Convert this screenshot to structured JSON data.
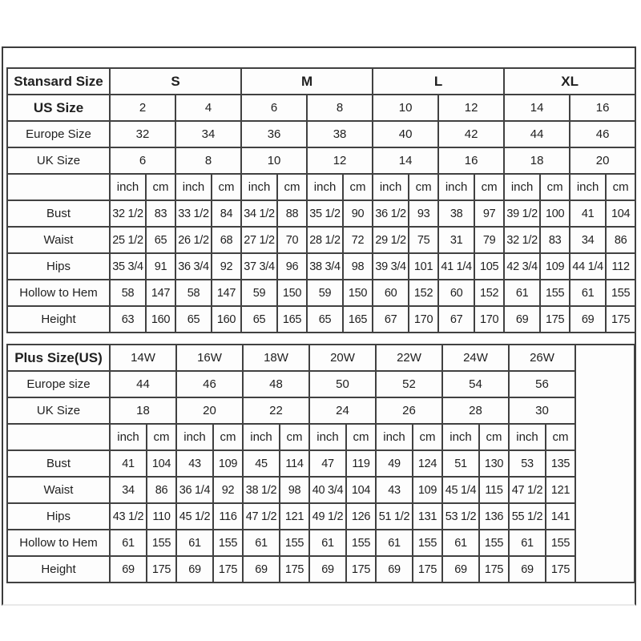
{
  "page": {
    "background": "#ffffff",
    "frame_border_color": "#3c3c3c",
    "grid_color": "#414141",
    "text_color": "#1f1f1f",
    "cell_background": "#fdfdfd"
  },
  "standard_table": {
    "header_label": "Stansard Size",
    "header_values_bold": true,
    "trailing_empty_column": false,
    "size_groups": [
      {
        "label": "S",
        "sizes": 2
      },
      {
        "label": "M",
        "sizes": 2
      },
      {
        "label": "L",
        "sizes": 2
      },
      {
        "label": "XL",
        "sizes": 2
      }
    ],
    "size_rows": [
      {
        "label": "US Size",
        "bold": true,
        "values": [
          "2",
          "4",
          "6",
          "8",
          "10",
          "12",
          "14",
          "16"
        ]
      },
      {
        "label": "Europe Size",
        "bold": false,
        "values": [
          "32",
          "34",
          "36",
          "38",
          "40",
          "42",
          "44",
          "46"
        ]
      },
      {
        "label": "UK Size",
        "bold": false,
        "values": [
          "6",
          "8",
          "10",
          "12",
          "14",
          "16",
          "18",
          "20"
        ]
      }
    ],
    "unit_labels": [
      "inch",
      "cm"
    ],
    "measurement_rows": [
      {
        "label": "Bust",
        "values": [
          "32 1/2",
          "83",
          "33 1/2",
          "84",
          "34 1/2",
          "88",
          "35 1/2",
          "90",
          "36 1/2",
          "93",
          "38",
          "97",
          "39 1/2",
          "100",
          "41",
          "104"
        ]
      },
      {
        "label": "Waist",
        "values": [
          "25 1/2",
          "65",
          "26 1/2",
          "68",
          "27 1/2",
          "70",
          "28 1/2",
          "72",
          "29 1/2",
          "75",
          "31",
          "79",
          "32 1/2",
          "83",
          "34",
          "86"
        ]
      },
      {
        "label": "Hips",
        "values": [
          "35 3/4",
          "91",
          "36 3/4",
          "92",
          "37 3/4",
          "96",
          "38 3/4",
          "98",
          "39 3/4",
          "101",
          "41 1/4",
          "105",
          "42 3/4",
          "109",
          "44 1/4",
          "112"
        ]
      },
      {
        "label": "Hollow to Hem",
        "values": [
          "58",
          "147",
          "58",
          "147",
          "59",
          "150",
          "59",
          "150",
          "60",
          "152",
          "60",
          "152",
          "61",
          "155",
          "61",
          "155"
        ]
      },
      {
        "label": "Height",
        "values": [
          "63",
          "160",
          "65",
          "160",
          "65",
          "165",
          "65",
          "165",
          "67",
          "170",
          "67",
          "170",
          "69",
          "175",
          "69",
          "175"
        ]
      }
    ]
  },
  "plus_table": {
    "header_label": "Plus Size(US)",
    "header_values_bold": false,
    "trailing_empty_column": true,
    "size_groups": [
      {
        "label": "14W",
        "sizes": 1
      },
      {
        "label": "16W",
        "sizes": 1
      },
      {
        "label": "18W",
        "sizes": 1
      },
      {
        "label": "20W",
        "sizes": 1
      },
      {
        "label": "22W",
        "sizes": 1
      },
      {
        "label": "24W",
        "sizes": 1
      },
      {
        "label": "26W",
        "sizes": 1
      }
    ],
    "size_rows": [
      {
        "label": "Europe size",
        "bold": false,
        "values": [
          "44",
          "46",
          "48",
          "50",
          "52",
          "54",
          "56"
        ]
      },
      {
        "label": "UK Size",
        "bold": false,
        "values": [
          "18",
          "20",
          "22",
          "24",
          "26",
          "28",
          "30"
        ]
      }
    ],
    "unit_labels": [
      "inch",
      "cm"
    ],
    "measurement_rows": [
      {
        "label": "Bust",
        "values": [
          "41",
          "104",
          "43",
          "109",
          "45",
          "114",
          "47",
          "119",
          "49",
          "124",
          "51",
          "130",
          "53",
          "135"
        ]
      },
      {
        "label": "Waist",
        "values": [
          "34",
          "86",
          "36 1/4",
          "92",
          "38 1/2",
          "98",
          "40 3/4",
          "104",
          "43",
          "109",
          "45 1/4",
          "115",
          "47 1/2",
          "121"
        ]
      },
      {
        "label": "Hips",
        "values": [
          "43 1/2",
          "110",
          "45 1/2",
          "116",
          "47 1/2",
          "121",
          "49 1/2",
          "126",
          "51 1/2",
          "131",
          "53 1/2",
          "136",
          "55 1/2",
          "141"
        ]
      },
      {
        "label": "Hollow to Hem",
        "values": [
          "61",
          "155",
          "61",
          "155",
          "61",
          "155",
          "61",
          "155",
          "61",
          "155",
          "61",
          "155",
          "61",
          "155"
        ]
      },
      {
        "label": "Height",
        "values": [
          "69",
          "175",
          "69",
          "175",
          "69",
          "175",
          "69",
          "175",
          "69",
          "175",
          "69",
          "175",
          "69",
          "175"
        ]
      }
    ]
  }
}
